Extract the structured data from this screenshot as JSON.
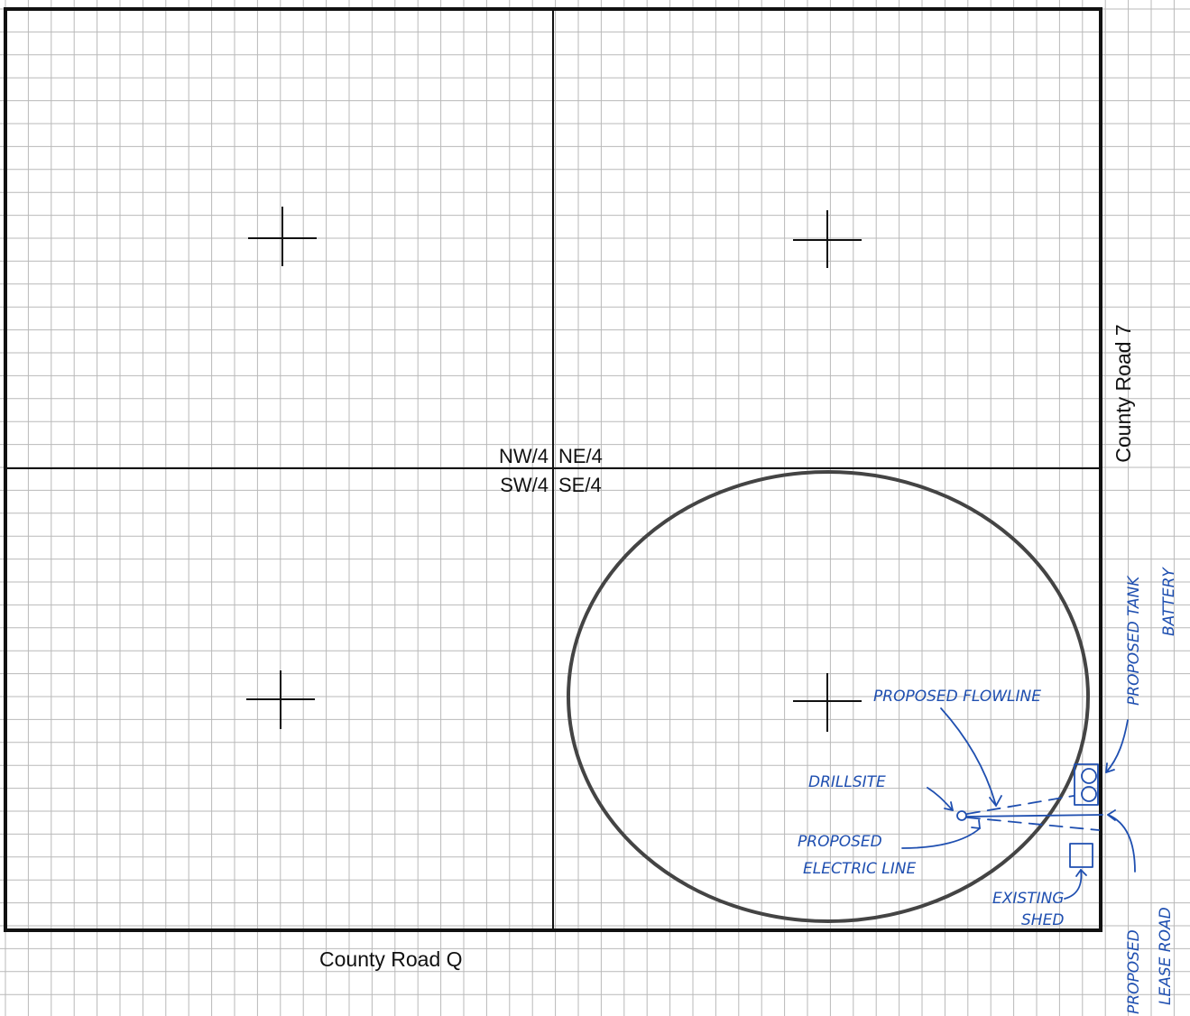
{
  "labels": {
    "nw": "NW/4",
    "ne": "NE/4",
    "sw": "SW/4",
    "se": "SE/4",
    "road_east": "County Road 7",
    "road_south": "County Road Q"
  },
  "annotations": {
    "tank_battery_1": "PROPOSED TANK",
    "tank_battery_2": "BATTERY",
    "flowline": "PROPOSED FLOWLINE",
    "drillsite": "DRILLSITE",
    "electric_1": "PROPOSED",
    "electric_2": "ELECTRIC LINE",
    "shed_1": "EXISTING",
    "shed_2": "SHED",
    "lease_road_1": "PROPOSED",
    "lease_road_2": "LEASE ROAD"
  },
  "colors": {
    "ink": "#1f4fb0",
    "line": "#111111",
    "grid": "#b9b9b9",
    "circle": "#444444"
  }
}
